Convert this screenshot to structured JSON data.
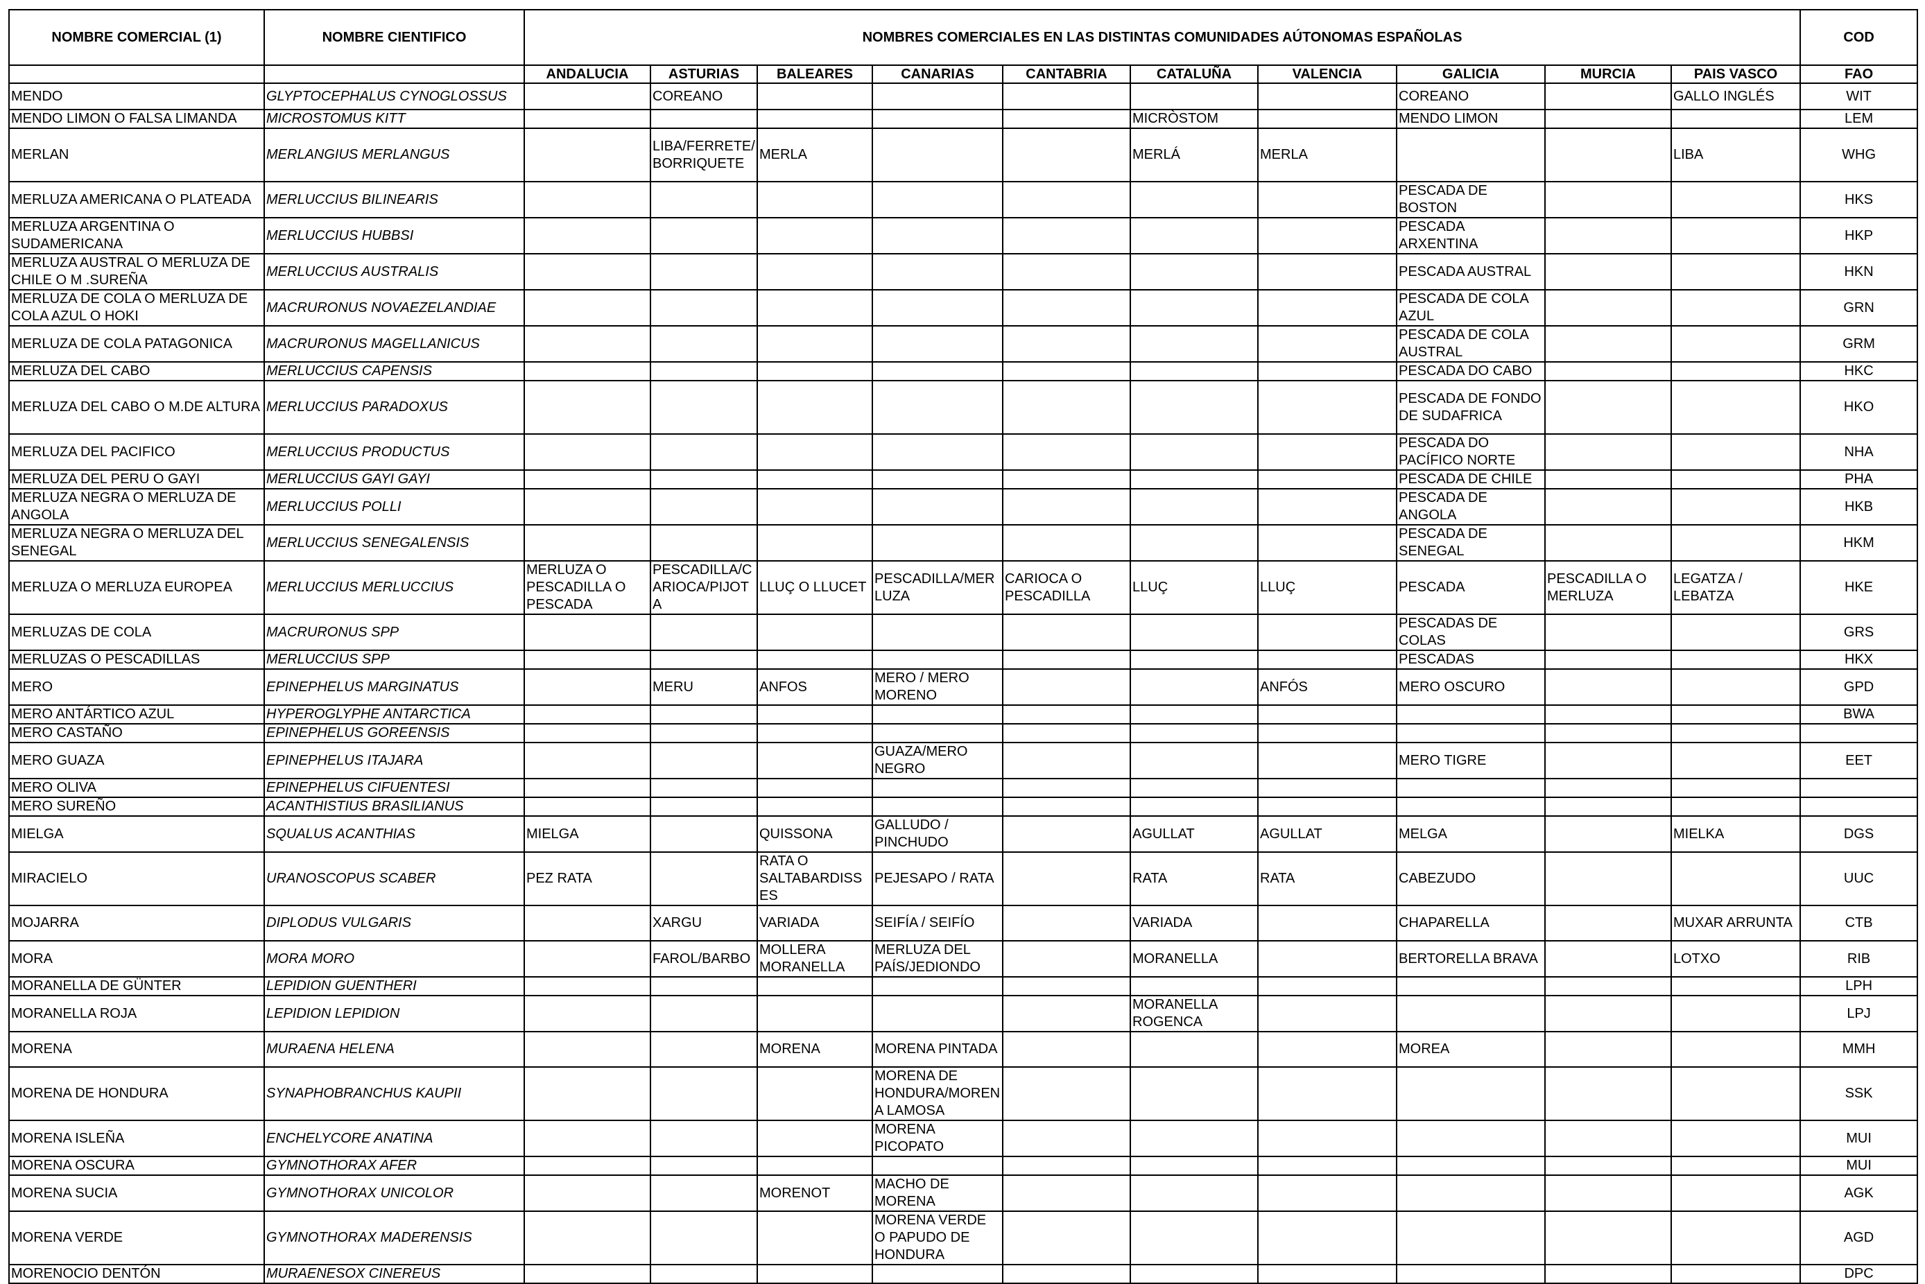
{
  "header": {
    "nombre_comercial": "NOMBRE COMERCIAL (1)",
    "nombre_cientifico": "NOMBRE CIENTIFICO",
    "comunidades": "NOMBRES COMERCIALES EN LAS DISTINTAS COMUNIDADES AÚTONOMAS ESPAÑOLAS",
    "cod": "COD",
    "fao": "FAO",
    "regions": [
      "ANDALUCIA",
      "ASTURIAS",
      "BALEARES",
      "CANARIAS",
      "CANTABRIA",
      "CATALUÑA",
      "VALENCIA",
      "GALICIA",
      "MURCIA",
      "PAIS VASCO"
    ]
  },
  "rows": [
    {
      "comercial": "MENDO",
      "cientifico": "GLYPTOCEPHALUS CYNOGLOSSUS",
      "and": "",
      "ast": "COREANO",
      "bal": "",
      "can": "",
      "cnt": "",
      "cat": "",
      "val": "",
      "gal": "COREANO",
      "mur": "",
      "pv": "GALLO INGLÉS",
      "fao": "WIT"
    },
    {
      "comercial": "MENDO LIMON O FALSA LIMANDA",
      "cientifico": "MICROSTOMUS KITT",
      "and": "",
      "ast": "",
      "bal": "",
      "can": "",
      "cnt": "",
      "cat": "MICRÒSTOM",
      "val": "",
      "gal": "MENDO LIMON",
      "mur": "",
      "pv": "",
      "fao": "LEM"
    },
    {
      "comercial": "MERLAN",
      "cientifico": "MERLANGIUS MERLANGUS",
      "and": "",
      "ast": "LIBA/FERRETE/ BORRIQUETE",
      "bal": "MERLA",
      "can": "",
      "cnt": "",
      "cat": "MERLÁ",
      "val": "MERLA",
      "gal": "",
      "mur": "",
      "pv": "LIBA",
      "fao": "WHG"
    },
    {
      "comercial": "MERLUZA AMERICANA O PLATEADA",
      "cientifico": "MERLUCCIUS BILINEARIS",
      "and": "",
      "ast": "",
      "bal": "",
      "can": "",
      "cnt": "",
      "cat": "",
      "val": "",
      "gal": "PESCADA DE BOSTON",
      "mur": "",
      "pv": "",
      "fao": "HKS"
    },
    {
      "comercial": "MERLUZA ARGENTINA O SUDAMERICANA",
      "cientifico": "MERLUCCIUS HUBBSI",
      "and": "",
      "ast": "",
      "bal": "",
      "can": "",
      "cnt": "",
      "cat": "",
      "val": "",
      "gal": "PESCADA ARXENTINA",
      "mur": "",
      "pv": "",
      "fao": "HKP"
    },
    {
      "comercial": "MERLUZA AUSTRAL O MERLUZA DE CHILE O M .SUREÑA",
      "cientifico": "MERLUCCIUS AUSTRALIS",
      "and": "",
      "ast": "",
      "bal": "",
      "can": "",
      "cnt": "",
      "cat": "",
      "val": "",
      "gal": "PESCADA AUSTRAL",
      "mur": "",
      "pv": "",
      "fao": "HKN"
    },
    {
      "comercial": "MERLUZA DE COLA  O  MERLUZA DE COLA AZUL O HOKI",
      "cientifico": "MACRURONUS NOVAEZELANDIAE",
      "and": "",
      "ast": "",
      "bal": "",
      "can": "",
      "cnt": "",
      "cat": "",
      "val": "",
      "gal": "PESCADA DE COLA AZUL",
      "mur": "",
      "pv": "",
      "fao": "GRN"
    },
    {
      "comercial": "MERLUZA DE COLA PATAGONICA",
      "cientifico": "MACRURONUS MAGELLANICUS",
      "and": "",
      "ast": "",
      "bal": "",
      "can": "",
      "cnt": "",
      "cat": "",
      "val": "",
      "gal": "PESCADA DE COLA AUSTRAL",
      "mur": "",
      "pv": "",
      "fao": "GRM"
    },
    {
      "comercial": "MERLUZA DEL CABO",
      "cientifico": "MERLUCCIUS CAPENSIS",
      "and": "",
      "ast": "",
      "bal": "",
      "can": "",
      "cnt": "",
      "cat": "",
      "val": "",
      "gal": "PESCADA DO CABO",
      "mur": "",
      "pv": "",
      "fao": "HKC"
    },
    {
      "comercial": "MERLUZA DEL CABO O M.DE ALTURA",
      "cientifico": "MERLUCCIUS PARADOXUS",
      "and": "",
      "ast": "",
      "bal": "",
      "can": "",
      "cnt": "",
      "cat": "",
      "val": "",
      "gal": "PESCADA DE FONDO DE SUDAFRICA",
      "mur": "",
      "pv": "",
      "fao": "HKO"
    },
    {
      "comercial": "MERLUZA DEL PACIFICO",
      "cientifico": "MERLUCCIUS PRODUCTUS",
      "and": "",
      "ast": "",
      "bal": "",
      "can": "",
      "cnt": "",
      "cat": "",
      "val": "",
      "gal": "PESCADA DO PACÍFICO NORTE",
      "mur": "",
      "pv": "",
      "fao": "NHA"
    },
    {
      "comercial": "MERLUZA DEL PERU O GAYI",
      "cientifico": "MERLUCCIUS GAYI GAYI",
      "and": "",
      "ast": "",
      "bal": "",
      "can": "",
      "cnt": "",
      "cat": "",
      "val": "",
      "gal": "PESCADA DE CHILE",
      "mur": "",
      "pv": "",
      "fao": "PHA"
    },
    {
      "comercial": "MERLUZA NEGRA O MERLUZA DE ANGOLA",
      "cientifico": "MERLUCCIUS POLLI",
      "and": "",
      "ast": "",
      "bal": "",
      "can": "",
      "cnt": "",
      "cat": "",
      "val": "",
      "gal": "PESCADA DE ANGOLA",
      "mur": "",
      "pv": "",
      "fao": "HKB"
    },
    {
      "comercial": "MERLUZA NEGRA O MERLUZA DEL SENEGAL",
      "cientifico": "MERLUCCIUS SENEGALENSIS",
      "and": "",
      "ast": "",
      "bal": "",
      "can": "",
      "cnt": "",
      "cat": "",
      "val": "",
      "gal": "PESCADA DE SENEGAL",
      "mur": "",
      "pv": "",
      "fao": "HKM"
    },
    {
      "comercial": "MERLUZA O MERLUZA EUROPEA",
      "cientifico": "MERLUCCIUS MERLUCCIUS",
      "and": "MERLUZA O PESCADILLA O PESCADA",
      "ast": "PESCADILLA/CARIOCA/PIJOTA",
      "bal": "LLUÇ O LLUCET",
      "can": "PESCADILLA/MERLUZA",
      "cnt": "CARIOCA O PESCADILLA",
      "cat": "LLUÇ",
      "val": "LLUÇ",
      "gal": "PESCADA",
      "mur": "PESCADILLA O MERLUZA",
      "pv": "LEGATZA / LEBATZA",
      "fao": "HKE"
    },
    {
      "comercial": "MERLUZAS DE COLA",
      "cientifico": "MACRURONUS SPP",
      "and": "",
      "ast": "",
      "bal": "",
      "can": "",
      "cnt": "",
      "cat": "",
      "val": "",
      "gal": "PESCADAS DE COLAS",
      "mur": "",
      "pv": "",
      "fao": "GRS"
    },
    {
      "comercial": "MERLUZAS O PESCADILLAS",
      "cientifico": "MERLUCCIUS SPP",
      "and": "",
      "ast": "",
      "bal": "",
      "can": "",
      "cnt": "",
      "cat": "",
      "val": "",
      "gal": "PESCADAS",
      "mur": "",
      "pv": "",
      "fao": "HKX"
    },
    {
      "comercial": "MERO",
      "cientifico": "EPINEPHELUS MARGINATUS",
      "and": "",
      "ast": "MERU",
      "bal": "ANFOS",
      "can": "MERO / MERO MORENO",
      "cnt": "",
      "cat": "",
      "val": "ANFÓS",
      "gal": "MERO OSCURO",
      "mur": "",
      "pv": "",
      "fao": "GPD"
    },
    {
      "comercial": "MERO ANTÁRTICO AZUL",
      "cientifico": "HYPEROGLYPHE ANTARCTICA",
      "and": "",
      "ast": "",
      "bal": "",
      "can": "",
      "cnt": "",
      "cat": "",
      "val": "",
      "gal": "",
      "mur": "",
      "pv": "",
      "fao": "BWA"
    },
    {
      "comercial": "MERO CASTAÑO",
      "cientifico": "EPINEPHELUS GOREENSIS",
      "and": "",
      "ast": "",
      "bal": "",
      "can": "",
      "cnt": "",
      "cat": "",
      "val": "",
      "gal": "",
      "mur": "",
      "pv": "",
      "fao": ""
    },
    {
      "comercial": "MERO GUAZA",
      "cientifico": "EPINEPHELUS ITAJARA",
      "and": "",
      "ast": "",
      "bal": "",
      "can": "GUAZA/MERO NEGRO",
      "cnt": "",
      "cat": "",
      "val": "",
      "gal": "MERO TIGRE",
      "mur": "",
      "pv": "",
      "fao": "EET"
    },
    {
      "comercial": "MERO OLIVA",
      "cientifico": "EPINEPHELUS CIFUENTESI",
      "and": "",
      "ast": "",
      "bal": "",
      "can": "",
      "cnt": "",
      "cat": "",
      "val": "",
      "gal": "",
      "mur": "",
      "pv": "",
      "fao": ""
    },
    {
      "comercial": "MERO SUREÑO",
      "cientifico": "ACANTHISTIUS BRASILIANUS",
      "and": "",
      "ast": "",
      "bal": "",
      "can": "",
      "cnt": "",
      "cat": "",
      "val": "",
      "gal": "",
      "mur": "",
      "pv": "",
      "fao": ""
    },
    {
      "comercial": "MIELGA",
      "cientifico": "SQUALUS ACANTHIAS",
      "and": "MIELGA",
      "ast": "",
      "bal": "QUISSONA",
      "can": "GALLUDO / PINCHUDO",
      "cnt": "",
      "cat": "AGULLAT",
      "val": "AGULLAT",
      "gal": "MELGA",
      "mur": "",
      "pv": "MIELKA",
      "fao": "DGS"
    },
    {
      "comercial": "MIRACIELO",
      "cientifico": "URANOSCOPUS SCABER",
      "and": "PEZ RATA",
      "ast": "",
      "bal": "RATA O SALTABARDISSES",
      "can": "PEJESAPO / RATA",
      "cnt": "",
      "cat": "RATA",
      "val": "RATA",
      "gal": "CABEZUDO",
      "mur": "",
      "pv": "",
      "fao": "UUC"
    },
    {
      "comercial": "MOJARRA",
      "cientifico": "DIPLODUS VULGARIS",
      "and": "",
      "ast": "XARGU",
      "bal": "VARIADA",
      "can": "SEIFÍA / SEIFÍO",
      "cnt": "",
      "cat": "VARIADA",
      "val": "",
      "gal": "CHAPARELLA",
      "mur": "",
      "pv": "MUXAR ARRUNTA",
      "fao": "CTB"
    },
    {
      "comercial": "MORA",
      "cientifico": "MORA MORO",
      "and": "",
      "ast": "FAROL/BARBO",
      "bal": "MOLLERA MORANELLA",
      "can": "MERLUZA DEL PAÍS/JEDIONDO",
      "cnt": "",
      "cat": "MORANELLA",
      "val": "",
      "gal": "BERTORELLA BRAVA",
      "mur": "",
      "pv": "LOTXO",
      "fao": "RIB"
    },
    {
      "comercial": "MORANELLA DE GÜNTER",
      "cientifico": "LEPIDION GUENTHERI",
      "and": "",
      "ast": "",
      "bal": "",
      "can": "",
      "cnt": "",
      "cat": "",
      "val": "",
      "gal": "",
      "mur": "",
      "pv": "",
      "fao": "LPH"
    },
    {
      "comercial": "MORANELLA ROJA",
      "cientifico": "LEPIDION LEPIDION",
      "and": "",
      "ast": "",
      "bal": "",
      "can": "",
      "cnt": "",
      "cat": "MORANELLA ROGENCA",
      "val": "",
      "gal": "",
      "mur": "",
      "pv": "",
      "fao": "LPJ"
    },
    {
      "comercial": "MORENA",
      "cientifico": "MURAENA HELENA",
      "and": "",
      "ast": "",
      "bal": "MORENA",
      "can": "MORENA PINTADA",
      "cnt": "",
      "cat": "",
      "val": "",
      "gal": "MOREA",
      "mur": "",
      "pv": "",
      "fao": "MMH"
    },
    {
      "comercial": "MORENA DE HONDURA",
      "cientifico": "SYNAPHOBRANCHUS KAUPII",
      "and": "",
      "ast": "",
      "bal": "",
      "can": "MORENA DE HONDURA/MORENA LAMOSA",
      "cnt": "",
      "cat": "",
      "val": "",
      "gal": "",
      "mur": "",
      "pv": "",
      "fao": "SSK"
    },
    {
      "comercial": "MORENA ISLEÑA",
      "cientifico": "ENCHELYCORE ANATINA",
      "and": "",
      "ast": "",
      "bal": "",
      "can": "MORENA PICOPATO",
      "cnt": "",
      "cat": "",
      "val": "",
      "gal": "",
      "mur": "",
      "pv": "",
      "fao": "MUI"
    },
    {
      "comercial": "MORENA OSCURA",
      "cientifico": "GYMNOTHORAX AFER",
      "and": "",
      "ast": "",
      "bal": "",
      "can": "",
      "cnt": "",
      "cat": "",
      "val": "",
      "gal": "",
      "mur": "",
      "pv": "",
      "fao": "MUI"
    },
    {
      "comercial": "MORENA SUCIA",
      "cientifico": "GYMNOTHORAX UNICOLOR",
      "and": "",
      "ast": "",
      "bal": "MORENOT",
      "can": "MACHO DE MORENA",
      "cnt": "",
      "cat": "",
      "val": "",
      "gal": "",
      "mur": "",
      "pv": "",
      "fao": "AGK"
    },
    {
      "comercial": "MORENA VERDE",
      "cientifico": "GYMNOTHORAX MADERENSIS",
      "and": "",
      "ast": "",
      "bal": "",
      "can": "MORENA VERDE O PAPUDO DE HONDURA",
      "cnt": "",
      "cat": "",
      "val": "",
      "gal": "",
      "mur": "",
      "pv": "",
      "fao": "AGD"
    },
    {
      "comercial": "MORENOCIO DENTÓN",
      "cientifico": "MURAENESOX CINEREUS",
      "and": "",
      "ast": "",
      "bal": "",
      "can": "",
      "cnt": "",
      "cat": "",
      "val": "",
      "gal": "",
      "mur": "",
      "pv": "",
      "fao": "DPC"
    }
  ]
}
